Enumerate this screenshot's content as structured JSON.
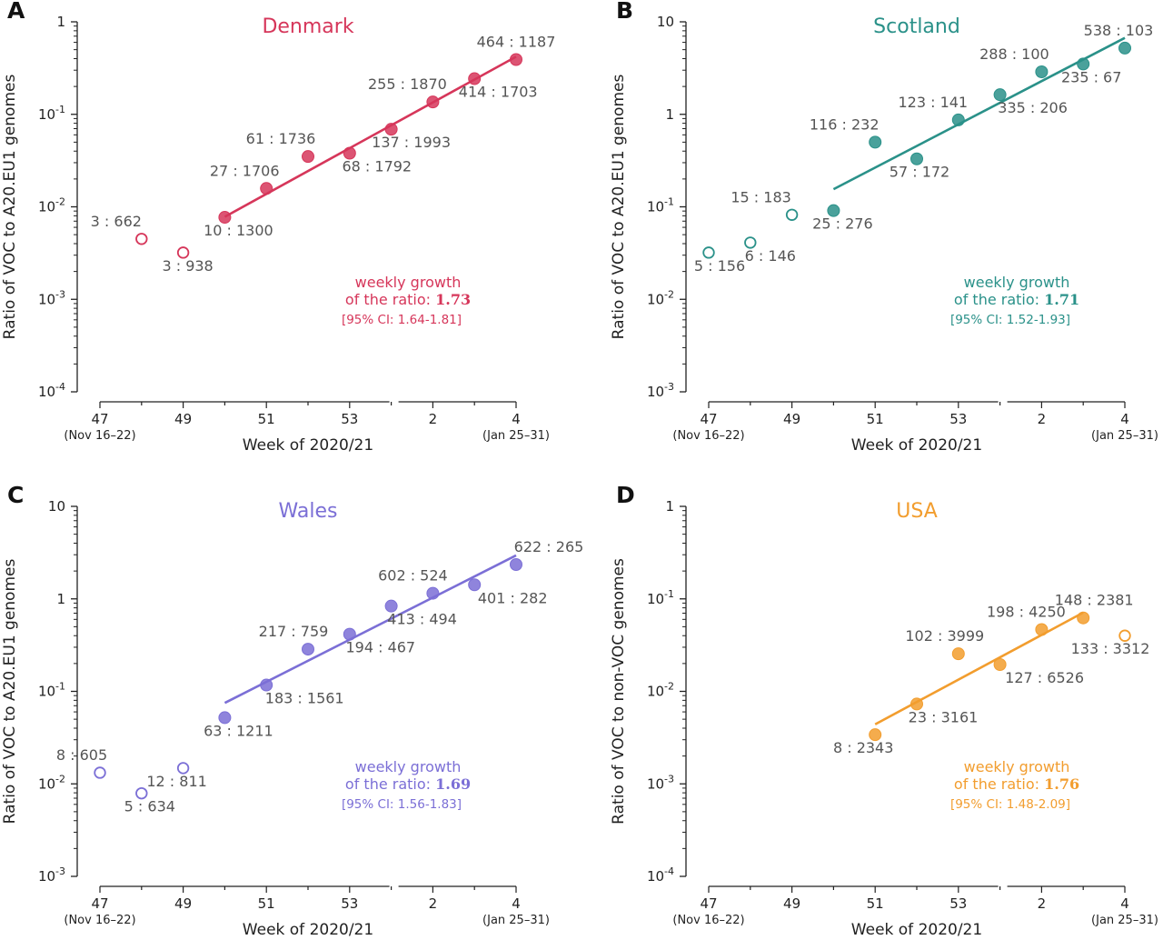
{
  "x_ticks": [
    {
      "week": 47,
      "label": "47",
      "sub": "(Nov 16–22)"
    },
    {
      "week": 49,
      "label": "49",
      "sub": ""
    },
    {
      "week": 51,
      "label": "51",
      "sub": ""
    },
    {
      "week": 53,
      "label": "53",
      "sub": ""
    },
    {
      "week": 55,
      "label": "2",
      "sub": ""
    },
    {
      "week": 57,
      "label": "4",
      "sub": "(Jan 25–31)"
    }
  ],
  "x_axis_label": "Week of 2020/21",
  "chart_data": [
    {
      "panel": "A",
      "type": "scatter",
      "title": "Denmark",
      "color": "#d6365a",
      "ylabel": "Ratio of VOC to A20.EU1 genomes",
      "yscale": "log",
      "ylim": [
        0.0001,
        1
      ],
      "y_tick_labels": [
        "10^-4",
        "10^-3",
        "10^-2",
        "10^-1",
        "1"
      ],
      "xlabel": "Week of 2020/21",
      "growth_text": "weekly growth",
      "ratio_text": "of the ratio:",
      "growth_value": "1.73",
      "ci_text": "[95% CI: 1.64-1.81]",
      "points": [
        {
          "week": 48,
          "ratio": 0.0045,
          "label": "3 : 662",
          "filled": false
        },
        {
          "week": 49,
          "ratio": 0.0032,
          "label": "3 : 938",
          "filled": false
        },
        {
          "week": 50,
          "ratio": 0.0077,
          "label": "10 : 1300",
          "filled": true
        },
        {
          "week": 51,
          "ratio": 0.0158,
          "label": "27 : 1706",
          "filled": true
        },
        {
          "week": 52,
          "ratio": 0.035,
          "label": "61 : 1736",
          "filled": true
        },
        {
          "week": 53,
          "ratio": 0.038,
          "label": "68 : 1792",
          "filled": true
        },
        {
          "week": 54,
          "ratio": 0.069,
          "label": "137 : 1993",
          "filled": true
        },
        {
          "week": 55,
          "ratio": 0.136,
          "label": "255 : 1870",
          "filled": true
        },
        {
          "week": 56,
          "ratio": 0.243,
          "label": "414 : 1703",
          "filled": true
        },
        {
          "week": 57,
          "ratio": 0.391,
          "label": "464 : 1187",
          "filled": true
        }
      ],
      "fit_line": {
        "x": [
          50,
          57
        ],
        "y": [
          0.0078,
          0.42
        ]
      }
    },
    {
      "panel": "B",
      "type": "scatter",
      "title": "Scotland",
      "color": "#2a9189",
      "ylabel": "Ratio of VOC to A20.EU1 genomes",
      "yscale": "log",
      "ylim": [
        0.001,
        10
      ],
      "y_tick_labels": [
        "10^-3",
        "10^-2",
        "10^-1",
        "1",
        "10"
      ],
      "xlabel": "Week of 2020/21",
      "growth_text": "weekly growth",
      "ratio_text": "of the ratio:",
      "growth_value": "1.71",
      "ci_text": "[95% CI: 1.52-1.93]",
      "points": [
        {
          "week": 47,
          "ratio": 0.032,
          "label": "5 : 156",
          "filled": false
        },
        {
          "week": 48,
          "ratio": 0.041,
          "label": "6 : 146",
          "filled": false
        },
        {
          "week": 49,
          "ratio": 0.082,
          "label": "15 : 183",
          "filled": false
        },
        {
          "week": 50,
          "ratio": 0.091,
          "label": "25 : 276",
          "filled": true
        },
        {
          "week": 51,
          "ratio": 0.5,
          "label": "116 : 232",
          "filled": true
        },
        {
          "week": 52,
          "ratio": 0.33,
          "label": "57 : 172",
          "filled": true
        },
        {
          "week": 53,
          "ratio": 0.87,
          "label": "123 : 141",
          "filled": true
        },
        {
          "week": 54,
          "ratio": 1.63,
          "label": "335 : 206",
          "filled": true
        },
        {
          "week": 55,
          "ratio": 2.88,
          "label": "288 : 100",
          "filled": true
        },
        {
          "week": 56,
          "ratio": 3.5,
          "label": "235 : 67",
          "filled": true
        },
        {
          "week": 57,
          "ratio": 5.2,
          "label": "538 : 103",
          "filled": true
        }
      ],
      "fit_line": {
        "x": [
          50,
          57
        ],
        "y": [
          0.155,
          6.7
        ]
      }
    },
    {
      "panel": "C",
      "type": "scatter",
      "title": "Wales",
      "color": "#7b6fd6",
      "ylabel": "Ratio of VOC to A20.EU1 genomes",
      "yscale": "log",
      "ylim": [
        0.001,
        10
      ],
      "y_tick_labels": [
        "10^-3",
        "10^-2",
        "10^-1",
        "1",
        "10"
      ],
      "xlabel": "Week of 2020/21",
      "growth_text": "weekly growth",
      "ratio_text": "of the ratio:",
      "growth_value": "1.69",
      "ci_text": "[95% CI: 1.56-1.83]",
      "points": [
        {
          "week": 47,
          "ratio": 0.0132,
          "label": "8 : 605",
          "filled": false
        },
        {
          "week": 48,
          "ratio": 0.0079,
          "label": "5 : 634",
          "filled": false
        },
        {
          "week": 49,
          "ratio": 0.0148,
          "label": "12 : 811",
          "filled": false
        },
        {
          "week": 50,
          "ratio": 0.052,
          "label": "63 : 1211",
          "filled": true
        },
        {
          "week": 51,
          "ratio": 0.117,
          "label": "183 : 1561",
          "filled": true
        },
        {
          "week": 52,
          "ratio": 0.286,
          "label": "217 : 759",
          "filled": true
        },
        {
          "week": 53,
          "ratio": 0.415,
          "label": "194 : 467",
          "filled": true
        },
        {
          "week": 54,
          "ratio": 0.836,
          "label": "413 : 494",
          "filled": true
        },
        {
          "week": 55,
          "ratio": 1.15,
          "label": "602 : 524",
          "filled": true
        },
        {
          "week": 56,
          "ratio": 1.42,
          "label": "401 : 282",
          "filled": true
        },
        {
          "week": 57,
          "ratio": 2.35,
          "label": "622 : 265",
          "filled": true
        }
      ],
      "fit_line": {
        "x": [
          50,
          57
        ],
        "y": [
          0.075,
          2.95
        ]
      }
    },
    {
      "panel": "D",
      "type": "scatter",
      "title": "USA",
      "color": "#f29d2e",
      "ylabel": "Ratio of VOC to non-VOC genomes",
      "yscale": "log",
      "ylim": [
        0.0001,
        1
      ],
      "y_tick_labels": [
        "10^-4",
        "10^-3",
        "10^-2",
        "10^-1",
        "1"
      ],
      "xlabel": "Week of 2020/21",
      "growth_text": "weekly growth",
      "ratio_text": "of the ratio:",
      "growth_value": "1.76",
      "ci_text": "[95% CI: 1.48-2.09]",
      "points": [
        {
          "week": 51,
          "ratio": 0.0034,
          "label": "8 : 2343",
          "filled": true
        },
        {
          "week": 52,
          "ratio": 0.0073,
          "label": "23 : 3161",
          "filled": true
        },
        {
          "week": 53,
          "ratio": 0.0255,
          "label": "102 : 3999",
          "filled": true
        },
        {
          "week": 54,
          "ratio": 0.0195,
          "label": "127 : 6526",
          "filled": true
        },
        {
          "week": 55,
          "ratio": 0.0466,
          "label": "198 : 4250",
          "filled": true
        },
        {
          "week": 56,
          "ratio": 0.0622,
          "label": "148 : 2381",
          "filled": true
        },
        {
          "week": 57,
          "ratio": 0.04,
          "label": "133 : 3312",
          "filled": false
        }
      ],
      "fit_line": {
        "x": [
          51,
          56
        ],
        "y": [
          0.0044,
          0.071
        ]
      }
    }
  ]
}
